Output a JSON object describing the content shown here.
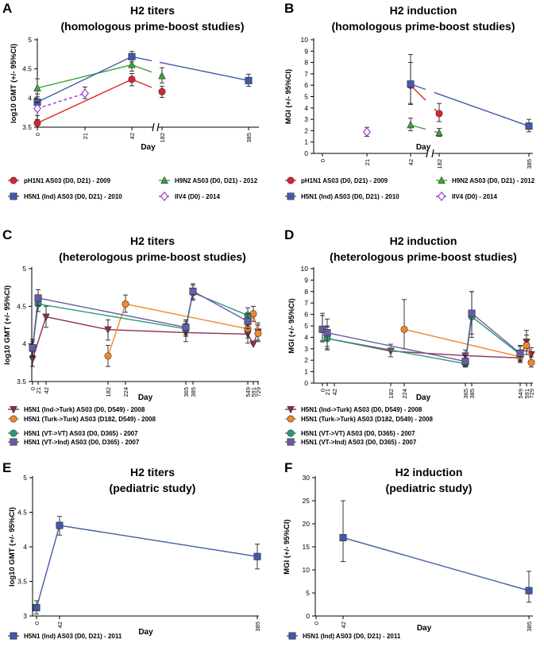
{
  "colors": {
    "pH1N1": "#d7262b",
    "H9N2": "#3fa63a",
    "H5N1_ind": "#4259a8",
    "IIV4": "#9b3fbf",
    "ind_turk": "#8b2d57",
    "turk_turk": "#f0882a",
    "vt_vt": "#2a9b77",
    "vt_ind": "#6a5aa8"
  },
  "chart_data": [
    {
      "id": "A",
      "panel_label": "A",
      "type": "line",
      "title": "H2 titers",
      "subtitle": "(homologous prime-boost studies)",
      "xlabel": "Day",
      "ylabel": "log10 GMT (+/- 95%CI)",
      "ylim": [
        3.5,
        5
      ],
      "yticks": [
        "3.5",
        "4",
        "4.5",
        "5"
      ],
      "xticks": [
        "0",
        "21",
        "42",
        "182",
        "385"
      ],
      "series": [
        {
          "name": "pH1N1 AS03 (D0, D21) - 2009",
          "color_key": "pH1N1",
          "marker": "circle",
          "dashed": false,
          "points": [
            {
              "x": "0",
              "y": 3.57,
              "lo": 3.53,
              "hi": 3.63
            },
            {
              "x": "42",
              "y": 4.32,
              "lo": 4.21,
              "hi": 4.42
            },
            {
              "x": "182",
              "y": 4.11,
              "lo": 4.01,
              "hi": 4.2
            }
          ]
        },
        {
          "name": "H9N2 AS03 (D0, D21) - 2012",
          "color_key": "H9N2",
          "marker": "triangle",
          "dashed": false,
          "points": [
            {
              "x": "0",
              "y": 4.17,
              "lo": 4.02,
              "hi": 4.33
            },
            {
              "x": "42",
              "y": 4.57,
              "lo": 4.46,
              "hi": 4.67
            },
            {
              "x": "182",
              "y": 4.38,
              "lo": 4.26,
              "hi": 4.52
            }
          ]
        },
        {
          "name": "H5N1 (Ind) AS03 (D0, D21) - 2010",
          "color_key": "H5N1_ind",
          "marker": "square",
          "dashed": false,
          "points": [
            {
              "x": "0",
              "y": 3.93,
              "lo": 3.84,
              "hi": 4.07
            },
            {
              "x": "42",
              "y": 4.71,
              "lo": 4.62,
              "hi": 4.8
            },
            {
              "x": "385",
              "y": 4.3,
              "lo": 4.2,
              "hi": 4.41
            }
          ]
        },
        {
          "name": "IIV4 (D0) - 2014",
          "color_key": "IIV4",
          "marker": "diamond",
          "dashed": true,
          "points": [
            {
              "x": "0",
              "y": 3.82,
              "lo": 3.7,
              "hi": 3.93
            },
            {
              "x": "21",
              "y": 4.08,
              "lo": 3.99,
              "hi": 4.19
            }
          ]
        }
      ]
    },
    {
      "id": "B",
      "panel_label": "B",
      "type": "line",
      "title": "H2 induction",
      "subtitle": "(homologous prime-boost studies)",
      "xlabel": "Day",
      "ylabel": "MGI (+/- 95%CI)",
      "ylim": [
        0,
        10
      ],
      "yticks": [
        "0",
        "1",
        "2",
        "3",
        "4",
        "5",
        "6",
        "7",
        "8",
        "9",
        "10"
      ],
      "xticks": [
        "0",
        "21",
        "42",
        "182",
        "385"
      ],
      "series": [
        {
          "name": "pH1N1 AS03 (D0, D21) - 2009",
          "color_key": "pH1N1",
          "marker": "circle",
          "dashed": false,
          "points": [
            {
              "x": "42",
              "y": 6.0,
              "lo": 4.4,
              "hi": 8.0
            },
            {
              "x": "182",
              "y": 3.5,
              "lo": 2.8,
              "hi": 4.4
            }
          ]
        },
        {
          "name": "H9N2 AS03 (D0, D21) - 2012",
          "color_key": "H9N2",
          "marker": "triangle",
          "dashed": false,
          "points": [
            {
              "x": "42",
              "y": 2.5,
              "lo": 2.0,
              "hi": 3.1
            },
            {
              "x": "182",
              "y": 1.8,
              "lo": 1.5,
              "hi": 2.2
            }
          ]
        },
        {
          "name": "H5N1 (Ind) AS03 (D0, D21) - 2010",
          "color_key": "H5N1_ind",
          "marker": "square",
          "dashed": false,
          "points": [
            {
              "x": "42",
              "y": 6.1,
              "lo": 4.3,
              "hi": 8.7
            },
            {
              "x": "385",
              "y": 2.4,
              "lo": 1.9,
              "hi": 3.0
            }
          ]
        },
        {
          "name": "IIV4 (D0) - 2014",
          "color_key": "IIV4",
          "marker": "diamond",
          "dashed": true,
          "points": [
            {
              "x": "21",
              "y": 1.9,
              "lo": 1.5,
              "hi": 2.3
            }
          ]
        }
      ]
    },
    {
      "id": "C",
      "panel_label": "C",
      "type": "line",
      "title": "H2 titers",
      "subtitle": "(heterologous prime-boost studies)",
      "xlabel": "Day",
      "ylabel": "log10 GMT (+/- 95%CI)",
      "ylim": [
        3.5,
        5
      ],
      "yticks": [
        "3.5",
        "4",
        "4.5",
        "5"
      ],
      "xticks": [
        "0",
        "21",
        "42",
        "182",
        "224",
        "365",
        "385",
        "549",
        "591",
        "729"
      ],
      "series": [
        {
          "name": "H5N1 (Ind->Turk) AS03 (D0, D549) - 2008",
          "color_key": "ind_turk",
          "marker": "triangle-down",
          "dashed": false,
          "points": [
            {
              "x": "0",
              "y": 3.8,
              "lo": 3.7,
              "hi": 3.9
            },
            {
              "x": "42",
              "y": 4.36,
              "lo": 4.22,
              "hi": 4.5
            },
            {
              "x": "182",
              "y": 4.19,
              "lo": 4.05,
              "hi": 4.32
            },
            {
              "x": "365",
              "y": 4.15,
              "lo": 4.03,
              "hi": 4.27
            },
            {
              "x": "549",
              "y": 4.13,
              "lo": 4.01,
              "hi": 4.25
            },
            {
              "x": "591",
              "y": 4.0,
              "lo": 4.0,
              "hi": 4.0
            },
            {
              "x": "729",
              "y": 4.16,
              "lo": 4.05,
              "hi": 4.28
            }
          ]
        },
        {
          "name": "H5N1 (Turk->Turk) AS03 (D182, D549) - 2008",
          "color_key": "turk_turk",
          "marker": "circle",
          "dashed": false,
          "points": [
            {
              "x": "182",
              "y": 3.84,
              "lo": 3.7,
              "hi": 3.98
            },
            {
              "x": "224",
              "y": 4.53,
              "lo": 4.42,
              "hi": 4.65
            },
            {
              "x": "549",
              "y": 4.2,
              "lo": 4.08,
              "hi": 4.33
            },
            {
              "x": "591",
              "y": 4.4,
              "lo": 4.3,
              "hi": 4.5
            },
            {
              "x": "729",
              "y": 4.14,
              "lo": 4.03,
              "hi": 4.25
            }
          ]
        },
        {
          "name": "H5N1 (VT->VT) AS03 (D0, D365) - 2007",
          "color_key": "vt_vt",
          "marker": "circle",
          "dashed": false,
          "points": [
            {
              "x": "0",
              "y": 3.93,
              "lo": 3.82,
              "hi": 4.03
            },
            {
              "x": "21",
              "y": 4.53,
              "lo": 4.43,
              "hi": 4.63
            },
            {
              "x": "365",
              "y": 4.2,
              "lo": 4.1,
              "hi": 4.3
            },
            {
              "x": "385",
              "y": 4.68,
              "lo": 4.58,
              "hi": 4.78
            },
            {
              "x": "549",
              "y": 4.38,
              "lo": 4.28,
              "hi": 4.48
            }
          ]
        },
        {
          "name": "H5N1 (VT->Ind) AS03 (D0, D365) - 2007",
          "color_key": "vt_ind",
          "marker": "square",
          "dashed": false,
          "points": [
            {
              "x": "0",
              "y": 3.95,
              "lo": 3.85,
              "hi": 4.06
            },
            {
              "x": "21",
              "y": 4.61,
              "lo": 4.51,
              "hi": 4.72
            },
            {
              "x": "365",
              "y": 4.22,
              "lo": 4.12,
              "hi": 4.32
            },
            {
              "x": "385",
              "y": 4.7,
              "lo": 4.6,
              "hi": 4.8
            },
            {
              "x": "549",
              "y": 4.3,
              "lo": 4.2,
              "hi": 4.4
            }
          ]
        }
      ]
    },
    {
      "id": "D",
      "panel_label": "D",
      "type": "line",
      "title": "H2 induction",
      "subtitle": "(heterologous prime-boost studies)",
      "xlabel": "Day",
      "ylabel": "MGI (+/- 95%CI)",
      "ylim": [
        0,
        10
      ],
      "yticks": [
        "0",
        "1",
        "2",
        "3",
        "4",
        "5",
        "6",
        "7",
        "8",
        "9",
        "10"
      ],
      "xticks": [
        "0",
        "21",
        "42",
        "182",
        "224",
        "365",
        "385",
        "549",
        "591",
        "729"
      ],
      "series": [
        {
          "name": "H5N1 (Ind->Turk) AS03 (D0, D549) - 2008",
          "color_key": "ind_turk",
          "marker": "triangle-down",
          "dashed": false,
          "points": [
            {
              "x": "21",
              "y": 3.9,
              "lo": 2.9,
              "hi": 4.9
            },
            {
              "x": "182",
              "y": 2.8,
              "lo": 2.3,
              "hi": 3.4
            },
            {
              "x": "365",
              "y": 2.4,
              "lo": 2.0,
              "hi": 2.9
            },
            {
              "x": "549",
              "y": 2.2,
              "lo": 1.8,
              "hi": 2.7
            },
            {
              "x": "591",
              "y": 3.6,
              "lo": 2.8,
              "hi": 4.6
            },
            {
              "x": "729",
              "y": 2.5,
              "lo": 2.0,
              "hi": 3.1
            }
          ]
        },
        {
          "name": "H5N1 (Turk->Turk) AS03 (D182, D549) - 2008",
          "color_key": "turk_turk",
          "marker": "circle",
          "dashed": false,
          "points": [
            {
              "x": "224",
              "y": 4.7,
              "lo": 3.0,
              "hi": 7.3
            },
            {
              "x": "549",
              "y": 2.3,
              "lo": 1.8,
              "hi": 2.9
            },
            {
              "x": "591",
              "y": 3.3,
              "lo": 2.5,
              "hi": 4.2
            },
            {
              "x": "729",
              "y": 1.8,
              "lo": 1.4,
              "hi": 2.3
            }
          ]
        },
        {
          "name": "H5N1 (VT->VT) AS03 (D0, D365) - 2007",
          "color_key": "vt_vt",
          "marker": "circle",
          "dashed": false,
          "points": [
            {
              "x": "0",
              "y": 4.7,
              "lo": 3.7,
              "hi": 5.9
            },
            {
              "x": "21",
              "y": 3.9,
              "lo": 3.0,
              "hi": 5.0
            },
            {
              "x": "365",
              "y": 1.7,
              "lo": 1.4,
              "hi": 2.1
            },
            {
              "x": "385",
              "y": 5.8,
              "lo": 4.0,
              "hi": 8.0
            },
            {
              "x": "549",
              "y": 2.5,
              "lo": 1.9,
              "hi": 3.2
            }
          ]
        },
        {
          "name": "H5N1 (VT->Ind) AS03 (D0, D365) - 2007",
          "color_key": "vt_ind",
          "marker": "square",
          "dashed": false,
          "points": [
            {
              "x": "0",
              "y": 4.7,
              "lo": 3.6,
              "hi": 6.1
            },
            {
              "x": "21",
              "y": 4.4,
              "lo": 3.2,
              "hi": 5.6
            },
            {
              "x": "365",
              "y": 1.9,
              "lo": 1.5,
              "hi": 2.4
            },
            {
              "x": "385",
              "y": 6.1,
              "lo": 4.3,
              "hi": 8.0
            },
            {
              "x": "549",
              "y": 2.6,
              "lo": 2.0,
              "hi": 3.3
            }
          ]
        }
      ]
    },
    {
      "id": "E",
      "panel_label": "E",
      "type": "line",
      "title": "H2 titers",
      "subtitle": "(pediatric study)",
      "xlabel": "Day",
      "ylabel": "log10 GMT (+/- 95%CI)",
      "ylim": [
        3,
        5
      ],
      "yticks": [
        "3",
        "3.5",
        "4",
        "4.5",
        "5"
      ],
      "xticks": [
        "0",
        "42",
        "385"
      ],
      "series": [
        {
          "name": "H5N1 (Ind) AS03 (D0, D21) - 2011",
          "color_key": "H5N1_ind",
          "marker": "square",
          "dashed": false,
          "points": [
            {
              "x": "0",
              "y": 3.12,
              "lo": 3.03,
              "hi": 3.22
            },
            {
              "x": "42",
              "y": 4.31,
              "lo": 4.17,
              "hi": 4.44
            },
            {
              "x": "385",
              "y": 3.86,
              "lo": 3.68,
              "hi": 4.04
            }
          ]
        }
      ]
    },
    {
      "id": "F",
      "panel_label": "F",
      "type": "line",
      "title": "H2 induction",
      "subtitle": "(pediatric study)",
      "xlabel": "Day",
      "ylabel": "MGI (+/- 95%CI)",
      "ylim": [
        0,
        30
      ],
      "yticks": [
        "0",
        "5",
        "10",
        "15",
        "20",
        "25",
        "30"
      ],
      "xticks": [
        "0",
        "42",
        "385"
      ],
      "series": [
        {
          "name": "H5N1 (Ind) AS03 (D0, D21) - 2011",
          "color_key": "H5N1_ind",
          "marker": "square",
          "dashed": false,
          "points": [
            {
              "x": "42",
              "y": 17,
              "lo": 11.8,
              "hi": 25
            },
            {
              "x": "385",
              "y": 5.5,
              "lo": 3.0,
              "hi": 9.7
            }
          ]
        }
      ]
    }
  ]
}
